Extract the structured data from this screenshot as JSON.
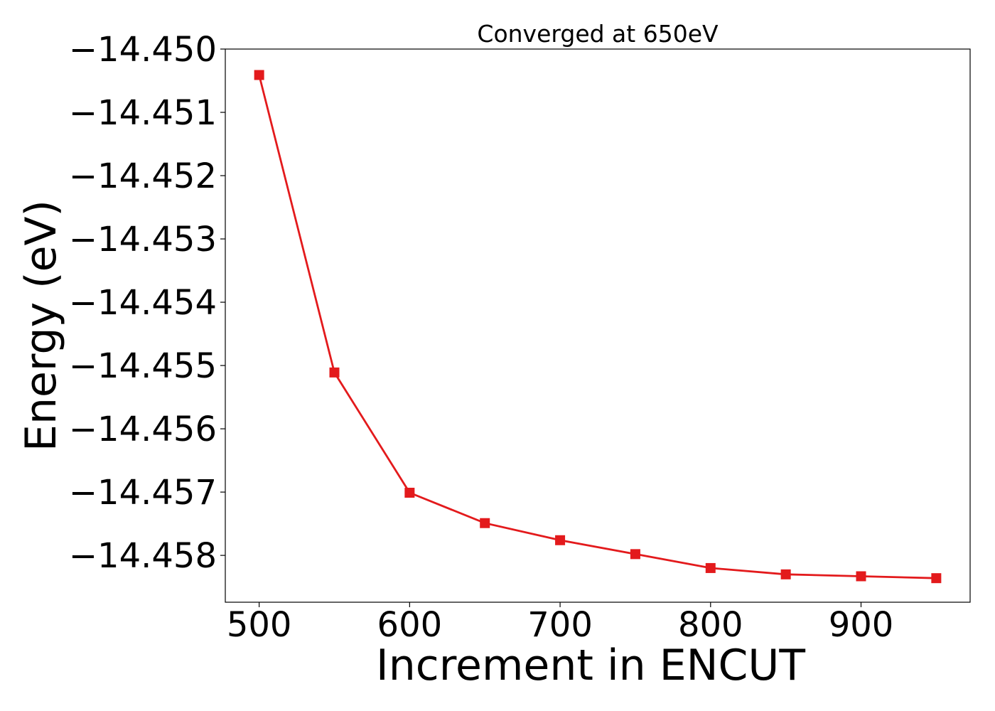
{
  "chart_data": {
    "type": "line",
    "title": "Converged at 650eV",
    "xlabel": "Increment in ENCUT",
    "ylabel": "Energy (eV)",
    "xlim": [
      477.5,
      972.5
    ],
    "ylim": [
      -14.45874,
      -14.45
    ],
    "x_ticks": [
      500,
      600,
      700,
      800,
      900
    ],
    "y_ticks": [
      -14.45,
      -14.451,
      -14.452,
      -14.453,
      -14.454,
      -14.455,
      -14.456,
      -14.457,
      -14.458
    ],
    "x_tick_labels": [
      "500",
      "600",
      "700",
      "800",
      "900"
    ],
    "y_tick_labels": [
      "−14.450",
      "−14.451",
      "−14.452",
      "−14.453",
      "−14.454",
      "−14.455",
      "−14.456",
      "−14.457",
      "−14.458"
    ],
    "grid": false,
    "legend": false,
    "series": [
      {
        "color": "#e31a1c",
        "marker": "square",
        "x": [
          500,
          550,
          600,
          650,
          700,
          750,
          800,
          850,
          900,
          950
        ],
        "y": [
          -14.45041,
          -14.45511,
          -14.45701,
          -14.45749,
          -14.45776,
          -14.45798,
          -14.4582,
          -14.4583,
          -14.45833,
          -14.45836
        ]
      }
    ]
  }
}
